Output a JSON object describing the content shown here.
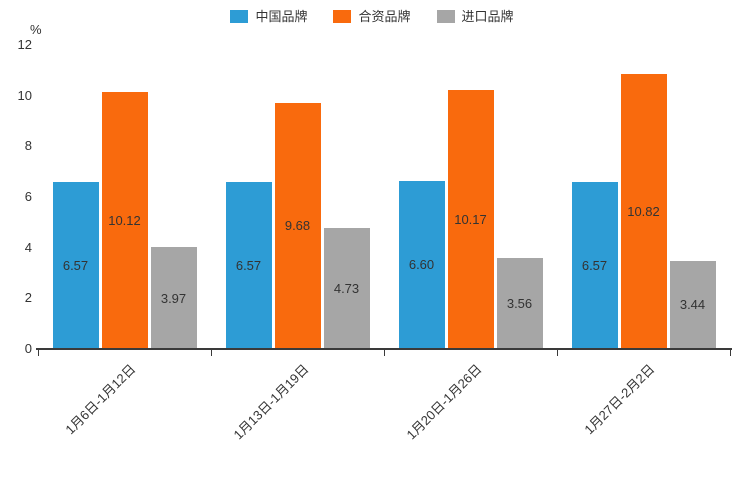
{
  "unit_label": "%",
  "colors": {
    "china": "#2D9CD5",
    "joint_venture": "#F96A0D",
    "import": "#A6A6A6",
    "axis": "#3a3a3a",
    "text": "#333333"
  },
  "legend": {
    "items": [
      {
        "label": "中国品牌",
        "color": "#2D9CD5"
      },
      {
        "label": "合资品牌",
        "color": "#F96A0D"
      },
      {
        "label": "进口品牌",
        "color": "#A6A6A6"
      }
    ]
  },
  "chart_data": {
    "type": "bar",
    "title": "",
    "xlabel": "",
    "ylabel": "%",
    "ylim": [
      0,
      12
    ],
    "yticks": [
      0,
      2,
      4,
      6,
      8,
      10,
      12
    ],
    "grid": false,
    "legend_position": "top",
    "categories": [
      "1月6日-1月12日",
      "1月13日-1月19日",
      "1月20日-1月26日",
      "1月27日-2月2日"
    ],
    "series": [
      {
        "name": "中国品牌",
        "color": "#2D9CD5",
        "values": [
          6.57,
          6.57,
          6.6,
          6.57
        ]
      },
      {
        "name": "合资品牌",
        "color": "#F96A0D",
        "values": [
          10.12,
          9.68,
          10.17,
          10.82
        ]
      },
      {
        "name": "进口品牌",
        "color": "#A6A6A6",
        "values": [
          3.97,
          4.73,
          3.56,
          3.44
        ]
      }
    ]
  }
}
